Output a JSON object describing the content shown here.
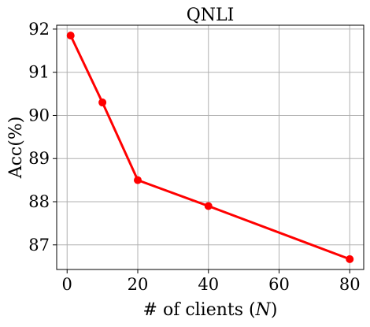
{
  "chart_data": {
    "type": "line",
    "title": "QNLI",
    "xlabel": "# of clients (N)",
    "xlabel_parts": {
      "prefix": "# of clients (",
      "var": "N",
      "suffix": ")"
    },
    "ylabel": "Acc(%)",
    "x": [
      1,
      10,
      20,
      40,
      80
    ],
    "series": [
      {
        "values": [
          91.85,
          90.3,
          88.5,
          87.9,
          86.67
        ],
        "color": "#ff0000"
      }
    ],
    "xlim": [
      -2.95,
      83.95
    ],
    "ylim": [
      86.43,
      92.09
    ],
    "xticks": [
      0,
      20,
      40,
      60,
      80
    ],
    "xtick_labels": [
      "0",
      "20",
      "40",
      "60",
      "80"
    ],
    "yticks": [
      87,
      88,
      89,
      90,
      91,
      92
    ],
    "ytick_labels": [
      "87",
      "88",
      "89",
      "90",
      "91",
      "92"
    ],
    "grid": true,
    "marker": "circle"
  }
}
